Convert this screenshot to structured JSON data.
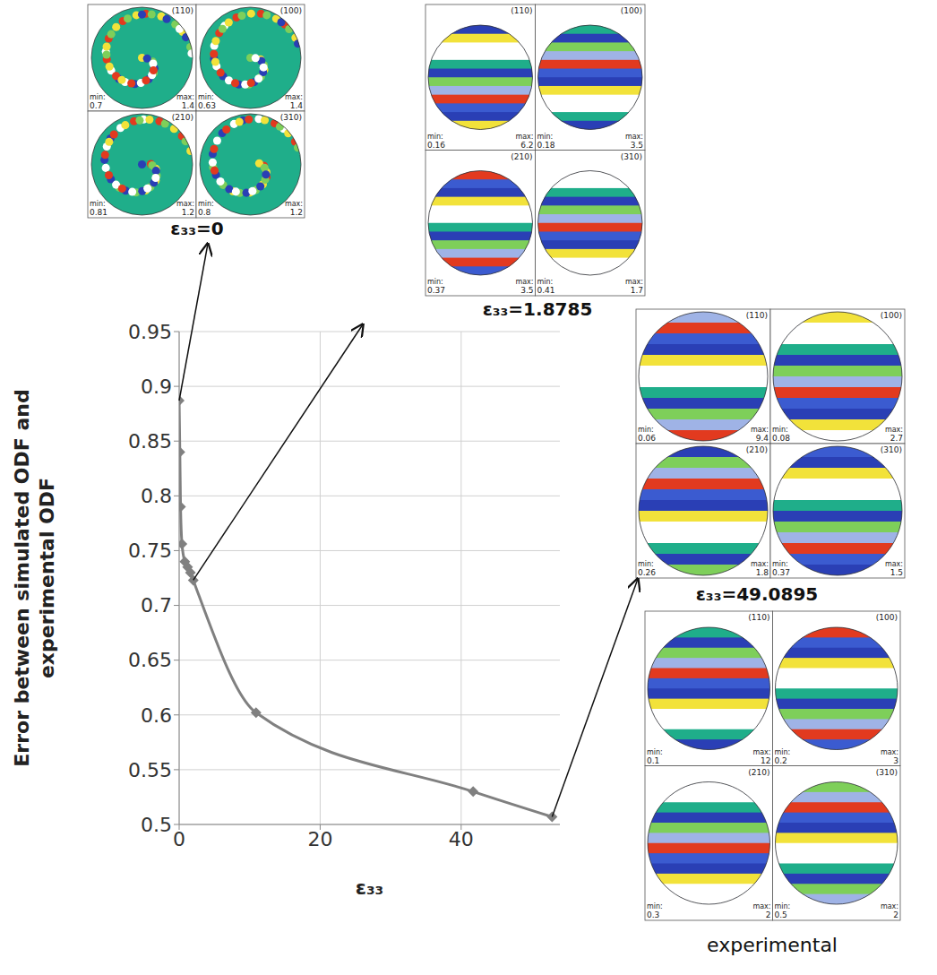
{
  "chart_data": {
    "type": "line",
    "x_label": "ε₃₃",
    "y_label": "Error between simulated ODF and experimental ODF",
    "x": [
      0,
      0.1,
      0.2,
      0.4,
      0.8,
      1.2,
      1.6,
      2.0,
      10.9,
      41.7,
      52.9
    ],
    "values": [
      0.887,
      0.84,
      0.79,
      0.756,
      0.74,
      0.735,
      0.73,
      0.723,
      0.602,
      0.53,
      0.507
    ],
    "color": "#808080",
    "marker": "diamond",
    "xlim": [
      0,
      54
    ],
    "xticks": [
      0,
      20,
      40
    ],
    "ylim": [
      0.5,
      0.95
    ],
    "yticks": [
      0.5,
      0.55,
      0.6,
      0.65,
      0.7,
      0.75,
      0.8,
      0.85,
      0.9,
      0.95
    ],
    "grid": true,
    "min_label": "min:",
    "max_label": "max:",
    "pole_figures": [
      {
        "label": "ε₃₃=0",
        "panels": [
          {
            "plane": "(110)",
            "min": 0.7,
            "max": 1.4
          },
          {
            "plane": "(100)",
            "min": 0.63,
            "max": 1.4
          },
          {
            "plane": "(210)",
            "min": 0.81,
            "max": 1.2
          },
          {
            "plane": "(310)",
            "min": 0.8,
            "max": 1.2
          }
        ]
      },
      {
        "label": "ε₃₃=1.8785",
        "panels": [
          {
            "plane": "(110)",
            "min": 0.16,
            "max": 6.2
          },
          {
            "plane": "(100)",
            "min": 0.18,
            "max": 3.5
          },
          {
            "plane": "(210)",
            "min": 0.37,
            "max": 3.5
          },
          {
            "plane": "(310)",
            "min": 0.41,
            "max": 1.7
          }
        ]
      },
      {
        "label": "ε₃₃=49.0895",
        "panels": [
          {
            "plane": "(110)",
            "min": 0.06,
            "max": 9.4
          },
          {
            "plane": "(100)",
            "min": 0.08,
            "max": 2.7
          },
          {
            "plane": "(210)",
            "min": 0.26,
            "max": 1.8
          },
          {
            "plane": "(310)",
            "min": 0.37,
            "max": 1.5
          }
        ]
      },
      {
        "label": "experimental",
        "panels": [
          {
            "plane": "(110)",
            "min": 0.1,
            "max": 12
          },
          {
            "plane": "(100)",
            "min": 0.2,
            "max": 3
          },
          {
            "plane": "(210)",
            "min": 0.3,
            "max": 2
          },
          {
            "plane": "(310)",
            "min": 0.5,
            "max": 2
          }
        ]
      }
    ]
  }
}
